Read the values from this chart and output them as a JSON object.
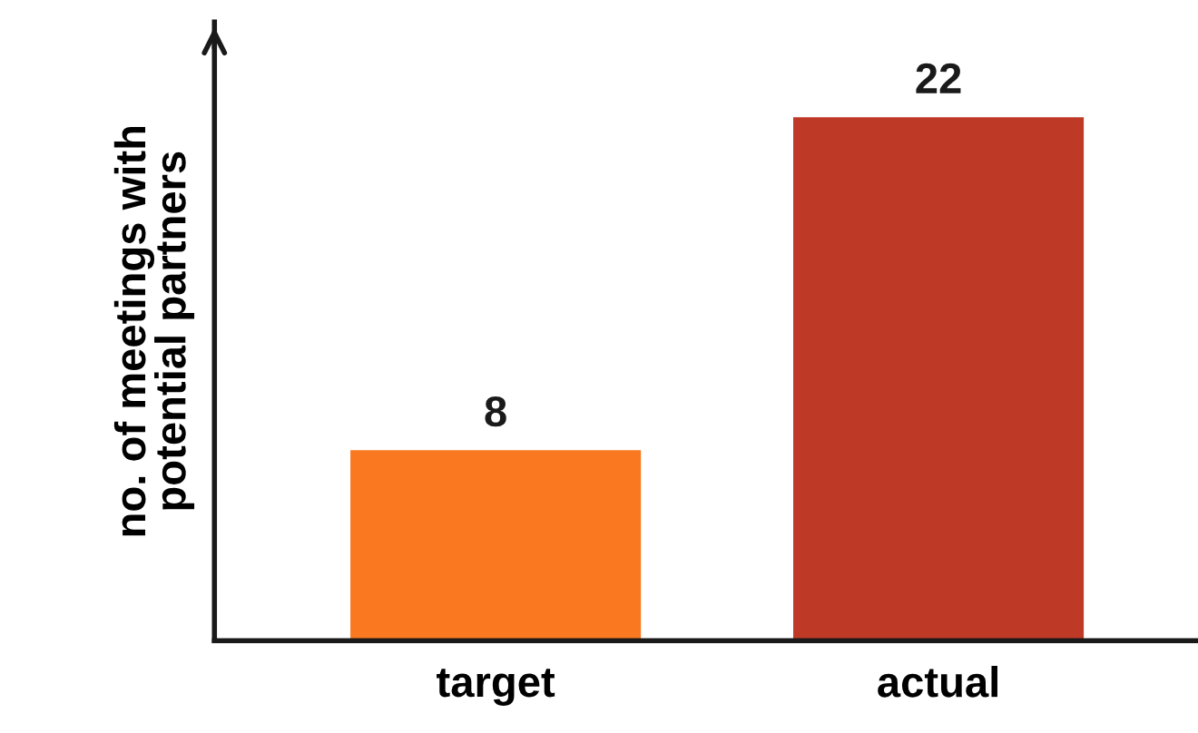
{
  "chart_data": {
    "type": "bar",
    "ylabel": "no. of meetings with\npotential partners",
    "categories": [
      "target",
      "actual"
    ],
    "values": [
      8,
      22
    ],
    "colors": [
      "#f97820",
      "#bf3a26"
    ],
    "ylim": [
      0,
      26
    ],
    "data_labels": true,
    "tick_labels": "x",
    "grid": false,
    "legend": false
  }
}
